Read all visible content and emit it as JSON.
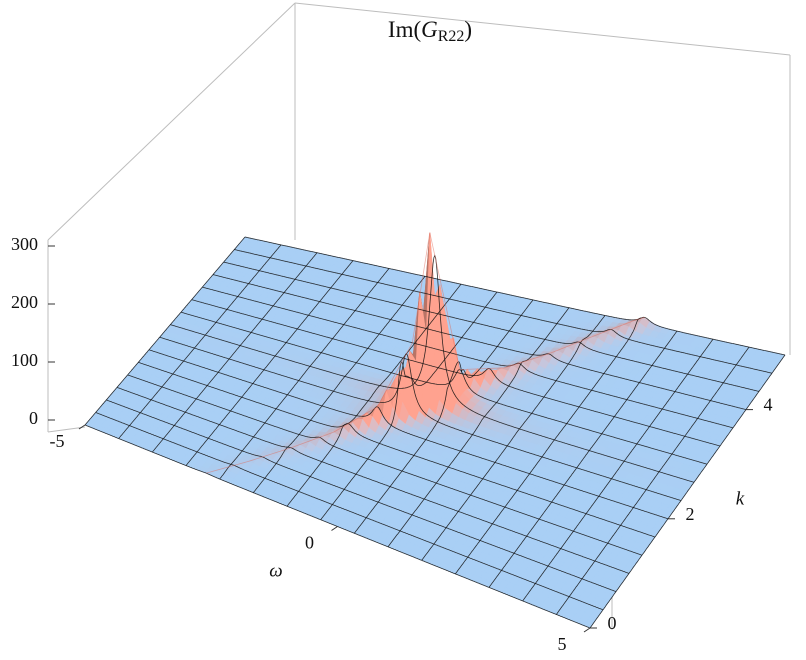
{
  "chart_data": {
    "type": "surface3d",
    "title": [
      "Im(",
      "G",
      "R22",
      ")"
    ],
    "xlabel": "ω",
    "ylabel": "k",
    "xlim": [
      -5,
      5
    ],
    "ylim": [
      0,
      5
    ],
    "zlim": [
      0,
      300
    ],
    "xticks": [
      -5,
      0,
      5
    ],
    "yticks": [
      0,
      2,
      4
    ],
    "zticks": [
      0,
      100,
      200,
      300
    ],
    "ridge": {
      "x": [
        -2.6,
        -2.1,
        -1.6,
        -1.1,
        -0.6,
        -0.2,
        0.0,
        0.3,
        0.8,
        1.3,
        1.8,
        2.3,
        2.4
      ],
      "y": [
        0,
        0.5,
        1.0,
        1.5,
        2.0,
        2.4,
        2.6,
        3.0,
        3.5,
        4.0,
        4.5,
        4.9,
        5.0
      ],
      "z": [
        1,
        2,
        5,
        10,
        30,
        120,
        300,
        40,
        15,
        10,
        10,
        14,
        12
      ]
    },
    "colors": {
      "low": "#a9cff5",
      "high": "#f59a88"
    },
    "mesh": true
  }
}
